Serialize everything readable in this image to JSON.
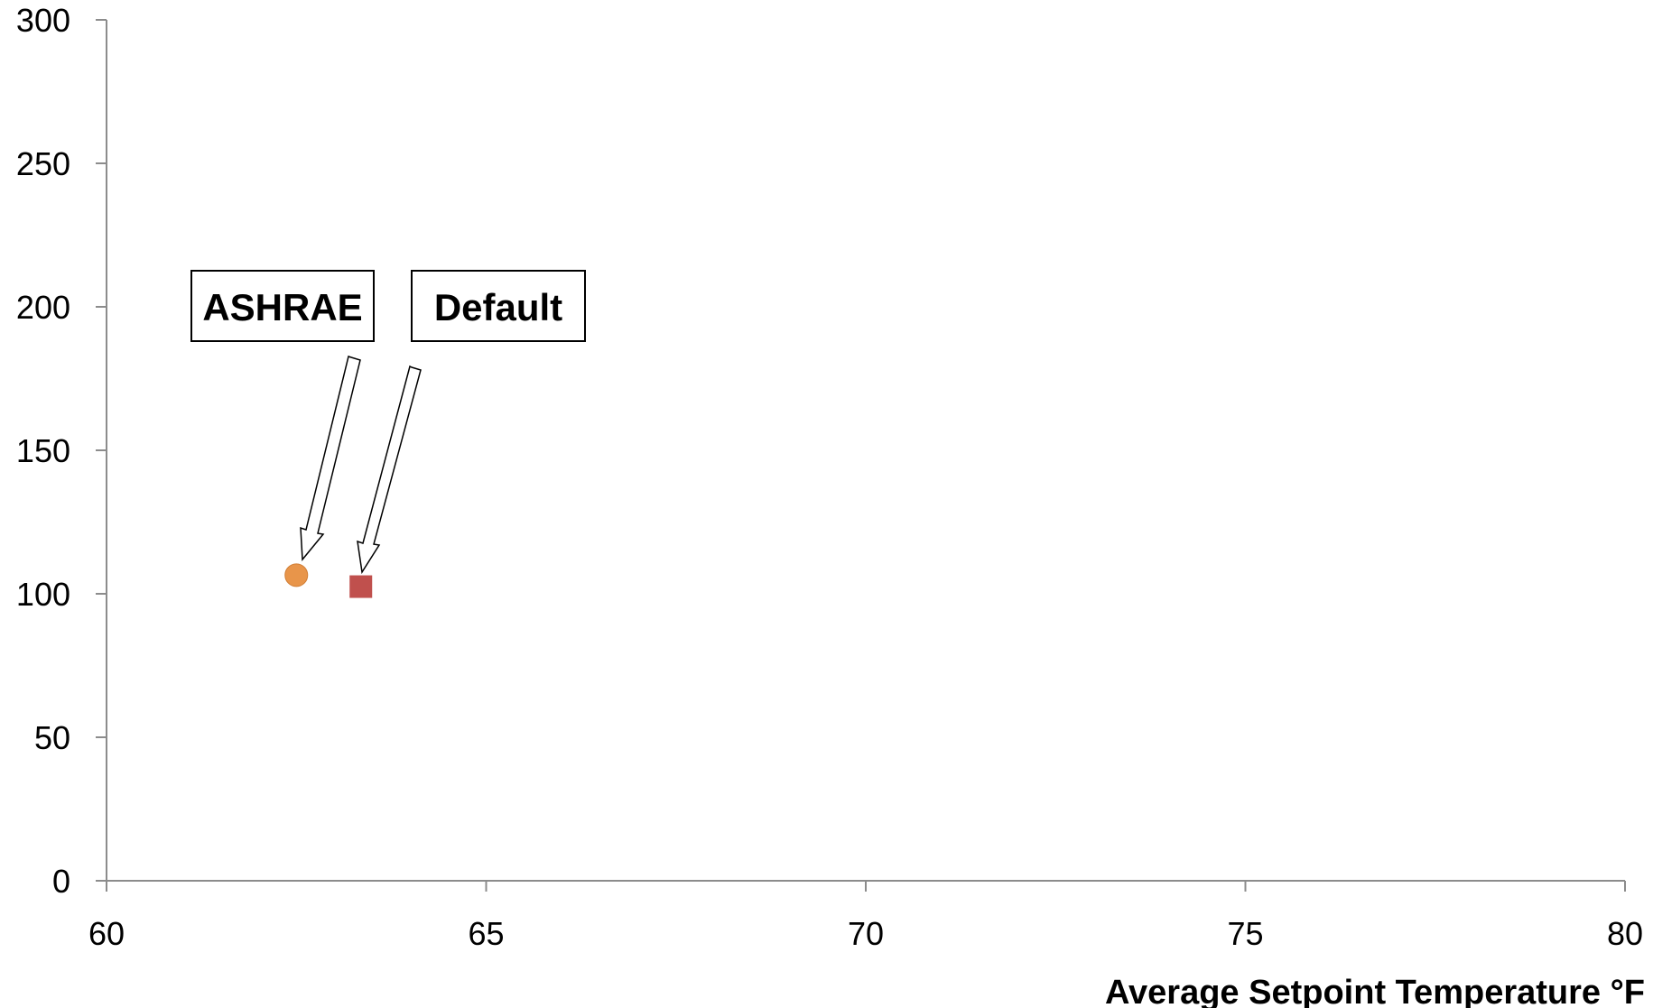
{
  "chart_data": {
    "type": "scatter",
    "title": "",
    "xlabel": "Average Setpoint Temperature °F",
    "ylabel": "",
    "xlim": [
      60,
      80
    ],
    "ylim": [
      0,
      300
    ],
    "x_ticks": [
      "60",
      "65",
      "70",
      "75",
      "80"
    ],
    "y_ticks": [
      "0",
      "50",
      "100",
      "150",
      "200",
      "250",
      "300"
    ],
    "grid": false,
    "legend": "none",
    "series": [
      {
        "marker": "circle",
        "color": "#E8954A",
        "points": [
          {
            "x": 62.5,
            "y": 106.5
          }
        ]
      },
      {
        "marker": "square",
        "color": "#C0504D",
        "points": [
          {
            "x": 63.35,
            "y": 102.5
          }
        ]
      }
    ],
    "annotations": [
      {
        "text": "ASHRAE",
        "target_series": 0
      },
      {
        "text": "Default",
        "target_series": 1
      }
    ]
  }
}
